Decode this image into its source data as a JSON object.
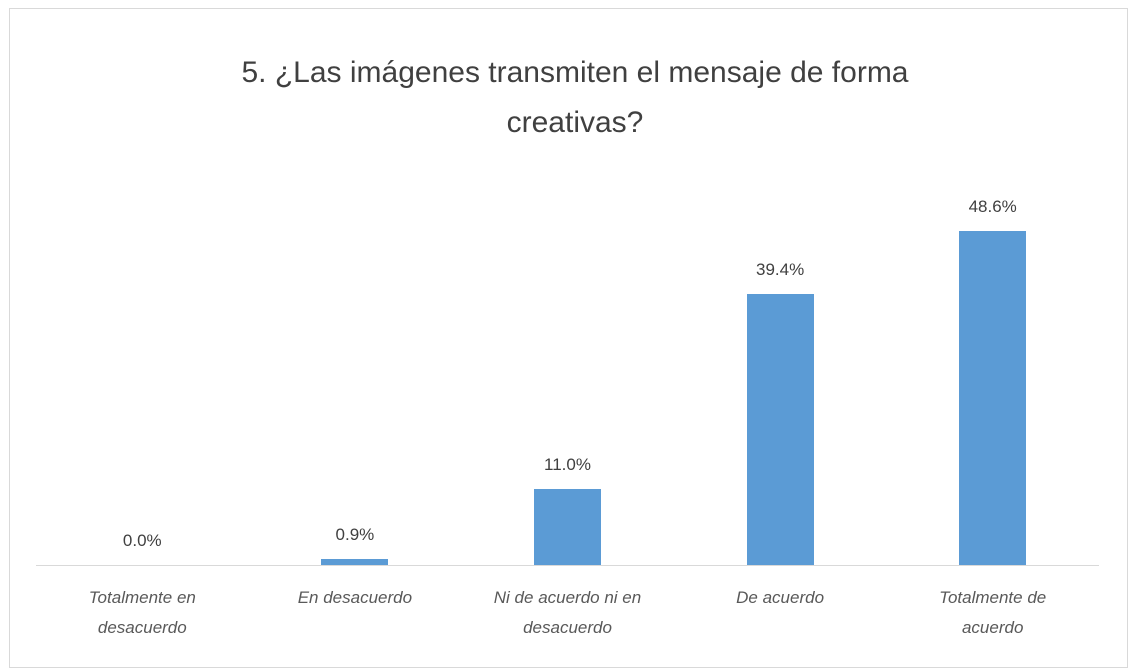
{
  "chart_data": {
    "type": "bar",
    "title": "5. ¿Las imágenes transmiten el mensaje de forma creativas?",
    "categories": [
      "Totalmente en desacuerdo",
      "En desacuerdo",
      "Ni de acuerdo ni en desacuerdo",
      "De acuerdo",
      "Totalmente de acuerdo"
    ],
    "values": [
      0.0,
      0.9,
      11.0,
      39.4,
      48.6
    ],
    "value_labels": [
      "0.0%",
      "0.9%",
      "11.0%",
      "39.4%",
      "48.6%"
    ],
    "color": "#5b9bd5"
  }
}
